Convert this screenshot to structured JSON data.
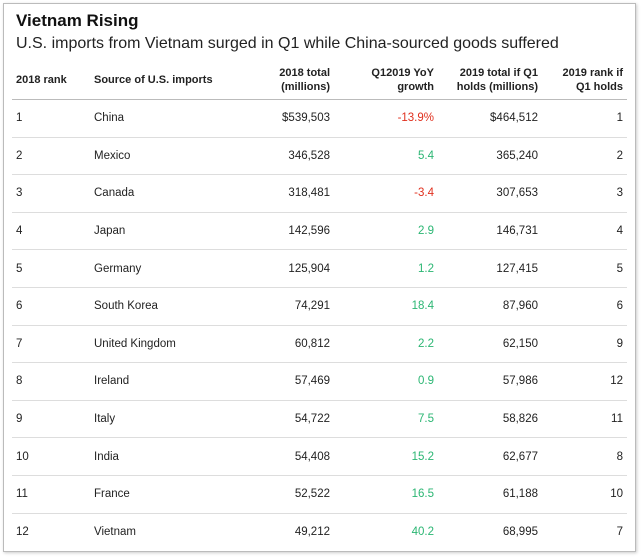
{
  "header": {
    "title": "Vietnam Rising",
    "subtitle": "U.S. imports from Vietnam surged in Q1 while China-sourced goods suffered"
  },
  "table": {
    "columns": [
      [
        "2018 rank"
      ],
      [
        "Source of U.S. imports"
      ],
      [
        "2018 total",
        "(millions)"
      ],
      [
        "Q12019 YoY",
        "growth"
      ],
      [
        "2019 total if Q1",
        "holds (millions)"
      ],
      [
        "2019 rank if",
        "Q1 holds"
      ]
    ],
    "rows": [
      [
        "1",
        "China",
        "$539,503",
        "-13.9%",
        "$464,512",
        "1"
      ],
      [
        "2",
        "Mexico",
        "346,528",
        "5.4",
        "365,240",
        "2"
      ],
      [
        "3",
        "Canada",
        "318,481",
        "-3.4",
        "307,653",
        "3"
      ],
      [
        "4",
        "Japan",
        "142,596",
        "2.9",
        "146,731",
        "4"
      ],
      [
        "5",
        "Germany",
        "125,904",
        "1.2",
        "127,415",
        "5"
      ],
      [
        "6",
        "South Korea",
        "74,291",
        "18.4",
        "87,960",
        "6"
      ],
      [
        "7",
        "United Kingdom",
        "60,812",
        "2.2",
        "62,150",
        "9"
      ],
      [
        "8",
        "Ireland",
        "57,469",
        "0.9",
        "57,986",
        "12"
      ],
      [
        "9",
        "Italy",
        "54,722",
        "7.5",
        "58,826",
        "11"
      ],
      [
        "10",
        "India",
        "54,408",
        "15.2",
        "62,677",
        "8"
      ],
      [
        "11",
        "France",
        "52,522",
        "16.5",
        "61,188",
        "10"
      ],
      [
        "12",
        "Vietnam",
        "49,212",
        "40.2",
        "68,995",
        "7"
      ]
    ]
  }
}
